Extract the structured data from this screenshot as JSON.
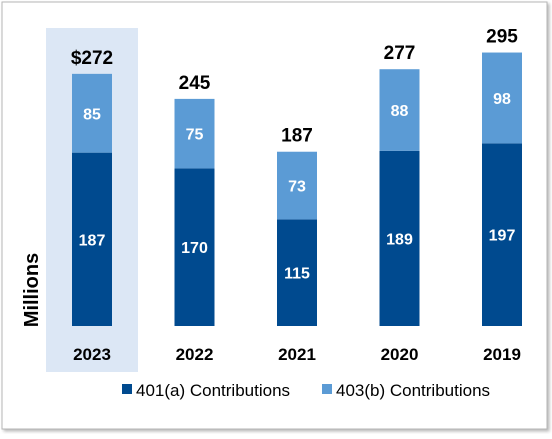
{
  "chart_data": {
    "type": "bar",
    "stacked": true,
    "categories": [
      "2023",
      "2022",
      "2021",
      "2020",
      "2019"
    ],
    "highlighted_category": "2023",
    "ylabel": "Millions",
    "series": [
      {
        "name": "401(a) Contributions",
        "values": [
          187,
          170,
          115,
          189,
          197
        ],
        "color": "#004a8f"
      },
      {
        "name": "403(b) Contributions",
        "values": [
          85,
          75,
          73,
          88,
          98
        ],
        "color": "#5b9bd5"
      }
    ],
    "totals": [
      "$272",
      "245",
      "187",
      "277",
      "295"
    ],
    "legend_position": "bottom",
    "grid": false
  }
}
